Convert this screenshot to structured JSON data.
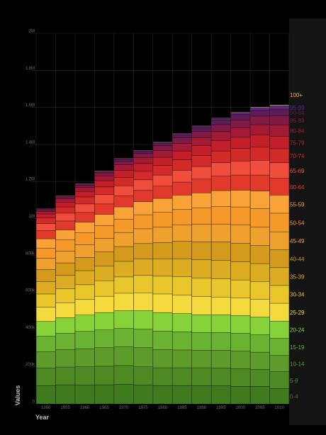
{
  "chart_data": {
    "type": "area",
    "xlabel": "Year",
    "ylabel": "Values",
    "ylim": [
      0,
      2000000
    ],
    "y_ticks": [
      {
        "value": 0,
        "label": "0"
      },
      {
        "value": 200000,
        "label": "200k"
      },
      {
        "value": 400000,
        "label": "400k"
      },
      {
        "value": 600000,
        "label": "600k"
      },
      {
        "value": 800000,
        "label": "800k"
      },
      {
        "value": 1000000,
        "label": "1M"
      },
      {
        "value": 1200000,
        "label": "1.2M"
      },
      {
        "value": 1400000,
        "label": "1.4M"
      },
      {
        "value": 1600000,
        "label": "1.6M"
      },
      {
        "value": 1800000,
        "label": "1.8M"
      },
      {
        "value": 2000000,
        "label": "2M"
      }
    ],
    "categories": [
      "1950",
      "1955",
      "1960",
      "1965",
      "1970",
      "1975",
      "1980",
      "1985",
      "1990",
      "1995",
      "2000",
      "2005",
      "2010"
    ],
    "series": [
      {
        "name": "0-4",
        "color": "#3f7a1e",
        "values": [
          98000,
          102000,
          100000,
          102000,
          104000,
          100000,
          98000,
          98000,
          98000,
          96000,
          94000,
          94000,
          82000
        ]
      },
      {
        "name": "5-9",
        "color": "#4e8a24",
        "values": [
          94000,
          96000,
          100000,
          100000,
          102000,
          100000,
          96000,
          96000,
          96000,
          96000,
          94000,
          90000,
          90000
        ]
      },
      {
        "name": "10-14",
        "color": "#5d9c2b",
        "values": [
          88000,
          94000,
          96000,
          100000,
          100000,
          102000,
          98000,
          96000,
          94000,
          96000,
          96000,
          94000,
          88000
        ]
      },
      {
        "name": "15-19",
        "color": "#6cb232",
        "values": [
          84000,
          88000,
          94000,
          96000,
          100000,
          100000,
          100000,
          98000,
          96000,
          96000,
          96000,
          94000,
          92000
        ]
      },
      {
        "name": "20-24",
        "color": "#86d238",
        "values": [
          80000,
          84000,
          88000,
          94000,
          96000,
          100000,
          100000,
          98000,
          96000,
          96000,
          96000,
          96000,
          94000
        ]
      },
      {
        "name": "25-29",
        "color": "#f4da3c",
        "values": [
          76000,
          80000,
          84000,
          88000,
          94000,
          96000,
          100000,
          100000,
          98000,
          96000,
          96000,
          96000,
          96000
        ]
      },
      {
        "name": "30-34",
        "color": "#e9c62c",
        "values": [
          72000,
          76000,
          80000,
          84000,
          88000,
          94000,
          96000,
          100000,
          100000,
          98000,
          96000,
          96000,
          96000
        ]
      },
      {
        "name": "35-39",
        "color": "#dcad22",
        "values": [
          68000,
          72000,
          76000,
          80000,
          84000,
          88000,
          94000,
          96000,
          100000,
          100000,
          98000,
          96000,
          96000
        ]
      },
      {
        "name": "40-44",
        "color": "#d39a1c",
        "values": [
          64000,
          68000,
          72000,
          76000,
          80000,
          84000,
          88000,
          94000,
          96000,
          100000,
          100000,
          98000,
          96000
        ]
      },
      {
        "name": "45-49",
        "color": "#eea12e",
        "values": [
          60000,
          64000,
          68000,
          72000,
          76000,
          80000,
          84000,
          88000,
          94000,
          96000,
          100000,
          100000,
          98000
        ]
      },
      {
        "name": "50-54",
        "color": "#f59a2a",
        "values": [
          56000,
          60000,
          64000,
          68000,
          72000,
          76000,
          80000,
          84000,
          88000,
          94000,
          96000,
          100000,
          100000
        ]
      },
      {
        "name": "55-59",
        "color": "#f8a238",
        "values": [
          50000,
          54000,
          58000,
          62000,
          66000,
          70000,
          74000,
          78000,
          82000,
          86000,
          90000,
          94000,
          98000
        ]
      },
      {
        "name": "60-64",
        "color": "#e13a2c",
        "values": [
          44000,
          48000,
          52000,
          56000,
          60000,
          62000,
          66000,
          70000,
          74000,
          78000,
          82000,
          86000,
          90000
        ]
      },
      {
        "name": "65-69",
        "color": "#f04d3c",
        "values": [
          38000,
          42000,
          46000,
          50000,
          54000,
          56000,
          60000,
          64000,
          68000,
          72000,
          76000,
          80000,
          84000
        ]
      },
      {
        "name": "70-74",
        "color": "#d12a28",
        "values": [
          30000,
          34000,
          38000,
          42000,
          46000,
          48000,
          52000,
          56000,
          60000,
          64000,
          68000,
          72000,
          76000
        ]
      },
      {
        "name": "75-79",
        "color": "#c21f2a",
        "values": [
          22000,
          26000,
          30000,
          34000,
          38000,
          40000,
          44000,
          48000,
          52000,
          56000,
          60000,
          64000,
          68000
        ]
      },
      {
        "name": "80-84",
        "color": "#a21a35",
        "values": [
          14000,
          18000,
          22000,
          26000,
          30000,
          32000,
          36000,
          40000,
          44000,
          48000,
          52000,
          56000,
          60000
        ]
      },
      {
        "name": "85-89",
        "color": "#7e1a45",
        "values": [
          8000,
          10000,
          12000,
          16000,
          20000,
          22000,
          26000,
          30000,
          34000,
          38000,
          42000,
          46000,
          50000
        ]
      },
      {
        "name": "90-94",
        "color": "#5f1b55",
        "values": [
          4000,
          5000,
          6000,
          8000,
          10000,
          12000,
          14000,
          16000,
          20000,
          24000,
          28000,
          32000,
          36000
        ]
      },
      {
        "name": "95-99",
        "color": "#5a2a80",
        "values": [
          2000,
          2000,
          3000,
          3000,
          4000,
          5000,
          6000,
          7000,
          8000,
          10000,
          12000,
          14000,
          18000
        ]
      },
      {
        "name": "100+",
        "color": "#e8b23a",
        "values": [
          500,
          500,
          500,
          1000,
          1000,
          1000,
          1000,
          1500,
          2000,
          2500,
          3000,
          4000,
          5000
        ]
      }
    ],
    "grid": true,
    "legend_placement": "right"
  }
}
